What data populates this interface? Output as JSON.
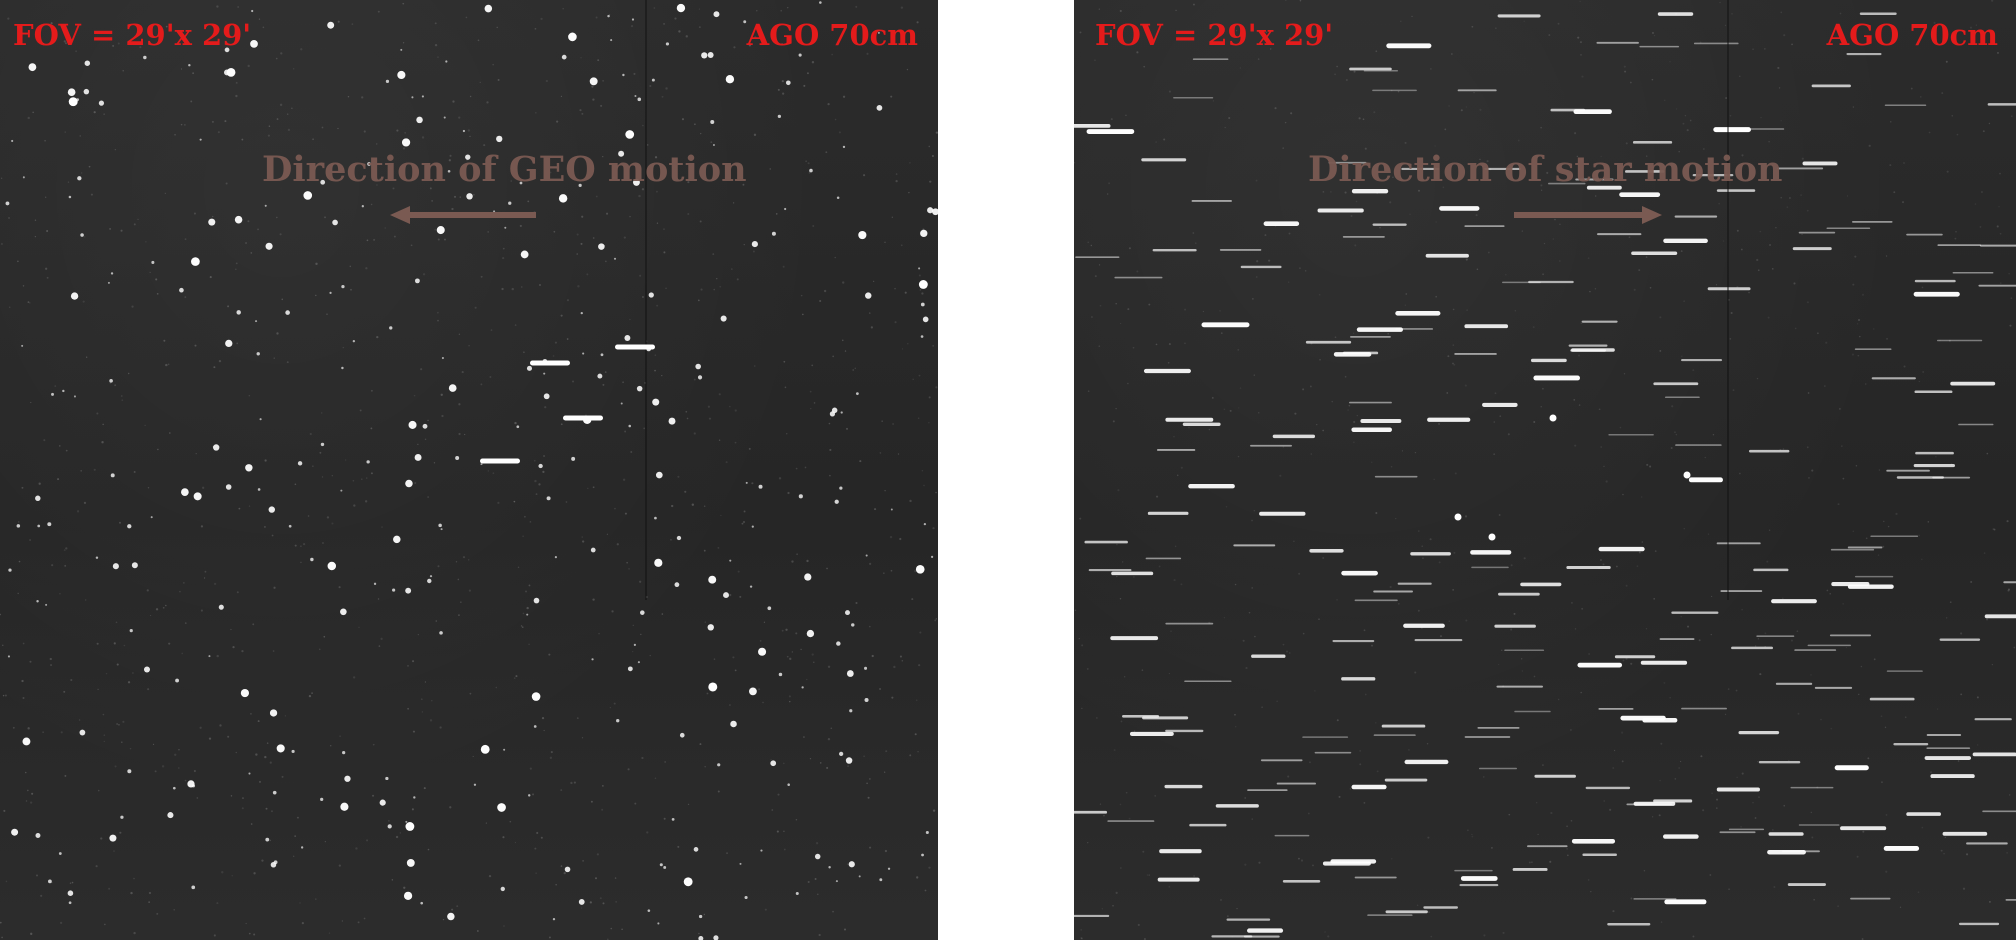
{
  "panels": [
    {
      "fov_label": "FOV = 29'x 29'",
      "telescope_label": "AGO 70cm",
      "direction_label": "Direction of GEO motion",
      "arrow_direction": "left",
      "appearance": "point-like stars with a few short trailed GEO objects",
      "colors": {
        "label": "#e41b1b",
        "direction": "#7a5a52",
        "background": "#282828"
      }
    },
    {
      "fov_label": "FOV = 29'x 29'",
      "telescope_label": "AGO 70cm",
      "direction_label": "Direction of star motion",
      "arrow_direction": "right",
      "appearance": "star trails with point-like GEO objects",
      "colors": {
        "label": "#e41b1b",
        "direction": "#7a5a52",
        "background": "#282828"
      }
    }
  ]
}
